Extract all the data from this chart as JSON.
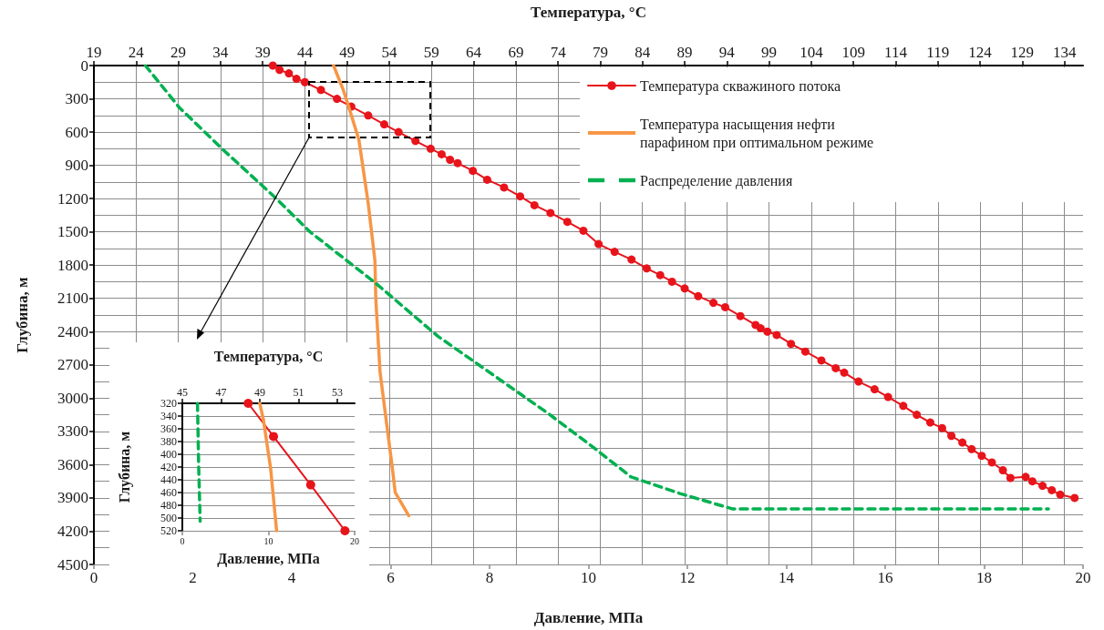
{
  "chart_data": [
    {
      "type": "line",
      "xlabel": "Давление, МПа",
      "x2label": "Температура, °C",
      "ylabel": "Глубина, м",
      "xlim": [
        0,
        20
      ],
      "xticks": [
        0,
        2,
        4,
        6,
        8,
        10,
        12,
        14,
        16,
        18,
        20
      ],
      "x2lim": [
        19,
        136.2
      ],
      "x2ticks": [
        19,
        24,
        29,
        34,
        39,
        44,
        49,
        54,
        59,
        64,
        69,
        74,
        79,
        84,
        89,
        94,
        99,
        104,
        109,
        114,
        119,
        124,
        129,
        134
      ],
      "ylim": [
        4500,
        0
      ],
      "yticks": [
        0,
        300,
        600,
        900,
        1200,
        1500,
        1800,
        2100,
        2400,
        2700,
        3000,
        3300,
        3600,
        3900,
        4200,
        4500
      ],
      "grid": true,
      "legend": "top right",
      "series": [
        {
          "name": "Температура скважиного потока",
          "color": "#e8141b",
          "axis": "x2",
          "marker": "circle",
          "line_style": "solid",
          "x": [
            40.2,
            41.0,
            42.1,
            43.0,
            44.0,
            45.9,
            47.8,
            49.5,
            51.5,
            53.4,
            55.1,
            57.1,
            58.9,
            60.2,
            61.2,
            62.1,
            63.9,
            65.6,
            67.6,
            69.5,
            71.2,
            73.1,
            75.1,
            77.0,
            78.8,
            80.7,
            82.7,
            84.5,
            86.1,
            87.5,
            89.0,
            90.6,
            92.4,
            93.8,
            95.6,
            97.4,
            98.0,
            98.8,
            99.9,
            101.6,
            103.3,
            105.2,
            106.9,
            107.9,
            109.6,
            111.5,
            113.1,
            114.9,
            116.5,
            118.1,
            119.5,
            120.6,
            121.9,
            123.0,
            124.2,
            125.4,
            126.7,
            127.6,
            129.4,
            130.2,
            131.4,
            132.5,
            133.5,
            135.2
          ],
          "values": [
            0,
            40,
            70,
            120,
            150,
            220,
            300,
            370,
            450,
            530,
            600,
            680,
            750,
            800,
            850,
            880,
            950,
            1030,
            1100,
            1180,
            1260,
            1330,
            1410,
            1490,
            1610,
            1680,
            1750,
            1830,
            1890,
            1950,
            2010,
            2080,
            2140,
            2180,
            2260,
            2340,
            2370,
            2400,
            2430,
            2510,
            2580,
            2660,
            2730,
            2770,
            2850,
            2920,
            2990,
            3070,
            3150,
            3220,
            3270,
            3340,
            3400,
            3460,
            3520,
            3580,
            3650,
            3720,
            3710,
            3750,
            3790,
            3830,
            3870,
            3900
          ]
        },
        {
          "name": "Температура насыщения нефти парафином при оптимальном режиме",
          "color": "#f79646",
          "axis": "x2",
          "marker": "none",
          "line_style": "solid",
          "x": [
            47.4,
            48.5,
            49.1,
            50.4,
            51.5,
            52.3,
            52.4,
            52.9,
            53.7,
            54.3,
            54.7,
            56.3
          ],
          "values": [
            0,
            210,
            350,
            670,
            1240,
            1760,
            2100,
            2760,
            3240,
            3590,
            3850,
            4060
          ]
        },
        {
          "name": "Распределение давления",
          "color": "#00b050",
          "marker": "none",
          "line_style": "dashed",
          "x": [
            1.04,
            1.73,
            2.59,
            3.64,
            4.37,
            5.69,
            6.95,
            9.16,
            10.0,
            10.86,
            11.85,
            12.92,
            19.3
          ],
          "values": [
            0,
            380,
            750,
            1180,
            1500,
            1960,
            2440,
            3130,
            3410,
            3710,
            3860,
            4000,
            4000
          ]
        }
      ]
    },
    {
      "type": "line",
      "xlabel": "Давление, МПа",
      "x2label": "Температура, °C",
      "ylabel": "Глубина, м",
      "xlim": [
        0,
        20
      ],
      "xticks": [
        0,
        10,
        20
      ],
      "x2lim": [
        45,
        53.9
      ],
      "x2ticks": [
        45,
        47,
        49,
        51,
        53
      ],
      "ylim": [
        520,
        320
      ],
      "yticks": [
        320,
        340,
        360,
        380,
        400,
        420,
        440,
        460,
        480,
        500,
        520
      ],
      "grid": "y",
      "series": [
        {
          "color": "#e8141b",
          "axis": "x2",
          "marker": "circle",
          "line_style": "solid",
          "x": [
            48.4,
            49.71,
            51.63,
            53.4
          ],
          "values": [
            320,
            372,
            448,
            520
          ]
        },
        {
          "color": "#f79646",
          "axis": "x2",
          "marker": "none",
          "line_style": "solid",
          "x": [
            49.0,
            49.19,
            49.56,
            49.87
          ],
          "values": [
            320,
            346,
            422,
            520
          ]
        },
        {
          "color": "#00b050",
          "marker": "none",
          "line_style": "dashed",
          "x": [
            1.76,
            1.9,
            2.07
          ],
          "values": [
            320,
            420,
            505
          ]
        }
      ]
    }
  ]
}
